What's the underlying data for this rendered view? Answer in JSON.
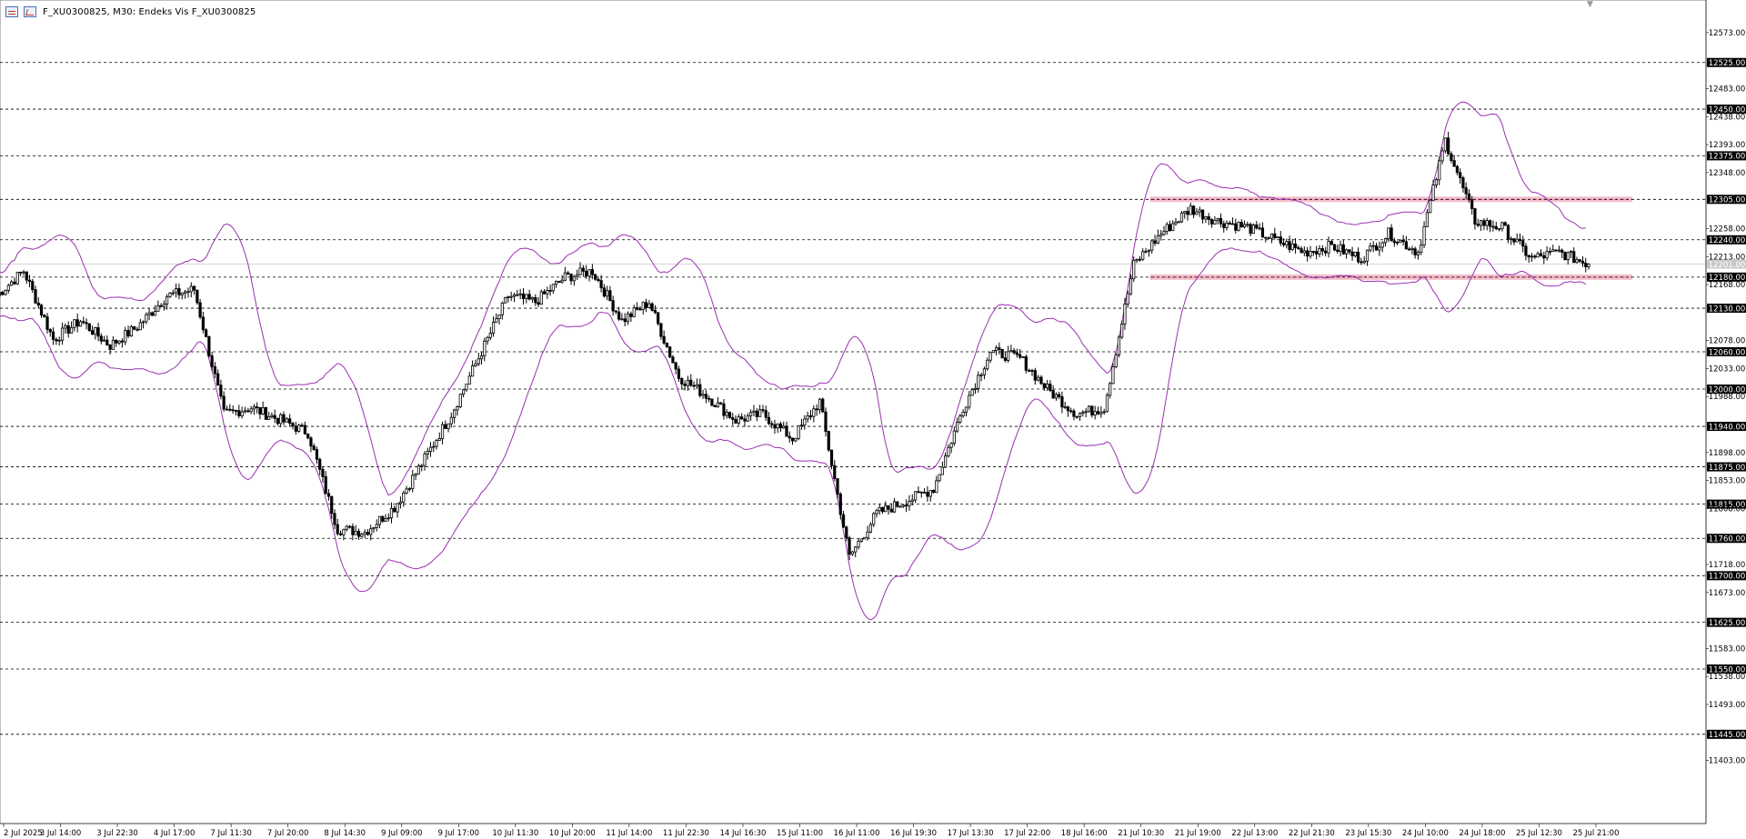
{
  "window": {
    "title": "F_XU0300825, M30:  Endeks Vis F_XU0300825"
  },
  "colors": {
    "background": "#ffffff",
    "candle": "#000000",
    "grid": "#000000",
    "band": "#9b30b0",
    "zone": "#f2b8c6",
    "label_bg": "#000000",
    "label_text": "#ffffff",
    "current_price_label_bg": "#c8c8c8"
  },
  "icons": [
    "grid-icon",
    "chart-icon",
    "collapse-arrow-icon"
  ],
  "chart_data": {
    "type": "candlestick",
    "symbol": "F_XU0300825",
    "timeframe": "M30",
    "ylim": [
      11360,
      12605
    ],
    "y_axis_ticks": [
      "12573.00",
      "12483.00",
      "12438.00",
      "12393.00",
      "12348.00",
      "12258.00",
      "12213.00",
      "12168.00",
      "12078.00",
      "12033.00",
      "11988.00",
      "11898.00",
      "11853.00",
      "11808.00",
      "11718.00",
      "11673.00",
      "11583.00",
      "11538.00",
      "11493.00",
      "11403.00"
    ],
    "horizontal_levels": [
      "12525.00",
      "12450.00",
      "12375.00",
      "12305.00",
      "12240.00",
      "12180.00",
      "12130.00",
      "12060.00",
      "12000.00",
      "11940.00",
      "11875.00",
      "11815.00",
      "11760.00",
      "11700.00",
      "11625.00",
      "11550.00",
      "11445.00"
    ],
    "current_price_label": "12201.00",
    "x_labels": [
      "2 Jul 2025",
      "3 Jul 14:00",
      "3 Jul 22:30",
      "4 Jul 17:00",
      "7 Jul 11:30",
      "7 Jul 20:00",
      "8 Jul 14:30",
      "9 Jul 09:00",
      "9 Jul 17:00",
      "10 Jul 11:30",
      "10 Jul 20:00",
      "11 Jul 14:00",
      "11 Jul 22:30",
      "14 Jul 16:30",
      "15 Jul 11:00",
      "16 Jul 11:00",
      "16 Jul 19:30",
      "17 Jul 13:30",
      "17 Jul 22:00",
      "18 Jul 16:00",
      "21 Jul 10:30",
      "21 Jul 19:00",
      "22 Jul 13:00",
      "22 Jul 21:30",
      "23 Jul 15:30",
      "24 Jul 10:00",
      "24 Jul 18:00",
      "25 Jul 12:30",
      "25 Jul 21:00"
    ],
    "zones": [
      {
        "level": 12305,
        "x_from_label": "21 Jul 10:30",
        "x_to_label": "25 Jul 21:00"
      },
      {
        "level": 12180,
        "x_from_label": "21 Jul 10:30",
        "x_to_label": "25 Jul 21:00"
      }
    ],
    "price_path": [
      {
        "x": "2 Jul 2025",
        "close": 12150
      },
      {
        "x": "2 Jul 2025",
        "close": 12190
      },
      {
        "x": "3 Jul 14:00",
        "close": 12080
      },
      {
        "x": "3 Jul 14:00",
        "close": 12110
      },
      {
        "x": "3 Jul 22:30",
        "close": 12070
      },
      {
        "x": "3 Jul 22:30",
        "close": 12100
      },
      {
        "x": "4 Jul 17:00",
        "close": 12150
      },
      {
        "x": "4 Jul 17:00",
        "close": 12160
      },
      {
        "x": "7 Jul 11:30",
        "close": 11960
      },
      {
        "x": "7 Jul 11:30",
        "close": 11970
      },
      {
        "x": "7 Jul 20:00",
        "close": 11950
      },
      {
        "x": "7 Jul 20:00",
        "close": 11930
      },
      {
        "x": "8 Jul 14:30",
        "close": 11775
      },
      {
        "x": "8 Jul 14:30",
        "close": 11770
      },
      {
        "x": "9 Jul 09:00",
        "close": 11810
      },
      {
        "x": "9 Jul 09:00",
        "close": 11880
      },
      {
        "x": "9 Jul 17:00",
        "close": 11960
      },
      {
        "x": "9 Jul 17:00",
        "close": 12050
      },
      {
        "x": "10 Jul 11:30",
        "close": 12150
      },
      {
        "x": "10 Jul 11:30",
        "close": 12140
      },
      {
        "x": "10 Jul 20:00",
        "close": 12180
      },
      {
        "x": "10 Jul 20:00",
        "close": 12190
      },
      {
        "x": "11 Jul 14:00",
        "close": 12110
      },
      {
        "x": "11 Jul 14:00",
        "close": 12140
      },
      {
        "x": "11 Jul 22:30",
        "close": 12020
      },
      {
        "x": "11 Jul 22:30",
        "close": 11990
      },
      {
        "x": "14 Jul 16:30",
        "close": 11950
      },
      {
        "x": "14 Jul 16:30",
        "close": 11960
      },
      {
        "x": "15 Jul 11:00",
        "close": 11920
      },
      {
        "x": "15 Jul 11:00",
        "close": 11980
      },
      {
        "x": "16 Jul 11:00",
        "close": 11730
      },
      {
        "x": "16 Jul 11:00",
        "close": 11800
      },
      {
        "x": "16 Jul 19:30",
        "close": 11820
      },
      {
        "x": "16 Jul 19:30",
        "close": 11840
      },
      {
        "x": "17 Jul 13:30",
        "close": 11970
      },
      {
        "x": "17 Jul 13:30",
        "close": 12060
      },
      {
        "x": "17 Jul 22:00",
        "close": 12050
      },
      {
        "x": "17 Jul 22:00",
        "close": 12000
      },
      {
        "x": "18 Jul 16:00",
        "close": 11960
      },
      {
        "x": "18 Jul 16:00",
        "close": 11970
      },
      {
        "x": "21 Jul 10:30",
        "close": 12200
      },
      {
        "x": "21 Jul 10:30",
        "close": 12250
      },
      {
        "x": "21 Jul 19:00",
        "close": 12290
      },
      {
        "x": "21 Jul 19:00",
        "close": 12270
      },
      {
        "x": "22 Jul 13:00",
        "close": 12260
      },
      {
        "x": "22 Jul 13:00",
        "close": 12240
      },
      {
        "x": "22 Jul 21:30",
        "close": 12220
      },
      {
        "x": "22 Jul 21:30",
        "close": 12230
      },
      {
        "x": "23 Jul 15:30",
        "close": 12210
      },
      {
        "x": "23 Jul 15:30",
        "close": 12250
      },
      {
        "x": "24 Jul 10:00",
        "close": 12220
      },
      {
        "x": "24 Jul 10:00",
        "close": 12400
      },
      {
        "x": "24 Jul 18:00",
        "close": 12270
      },
      {
        "x": "24 Jul 18:00",
        "close": 12260
      },
      {
        "x": "25 Jul 12:30",
        "close": 12210
      },
      {
        "x": "25 Jul 12:30",
        "close": 12220
      },
      {
        "x": "25 Jul 21:00",
        "close": 12201
      }
    ],
    "grid": "dashed horizontal levels",
    "legend": "none"
  }
}
